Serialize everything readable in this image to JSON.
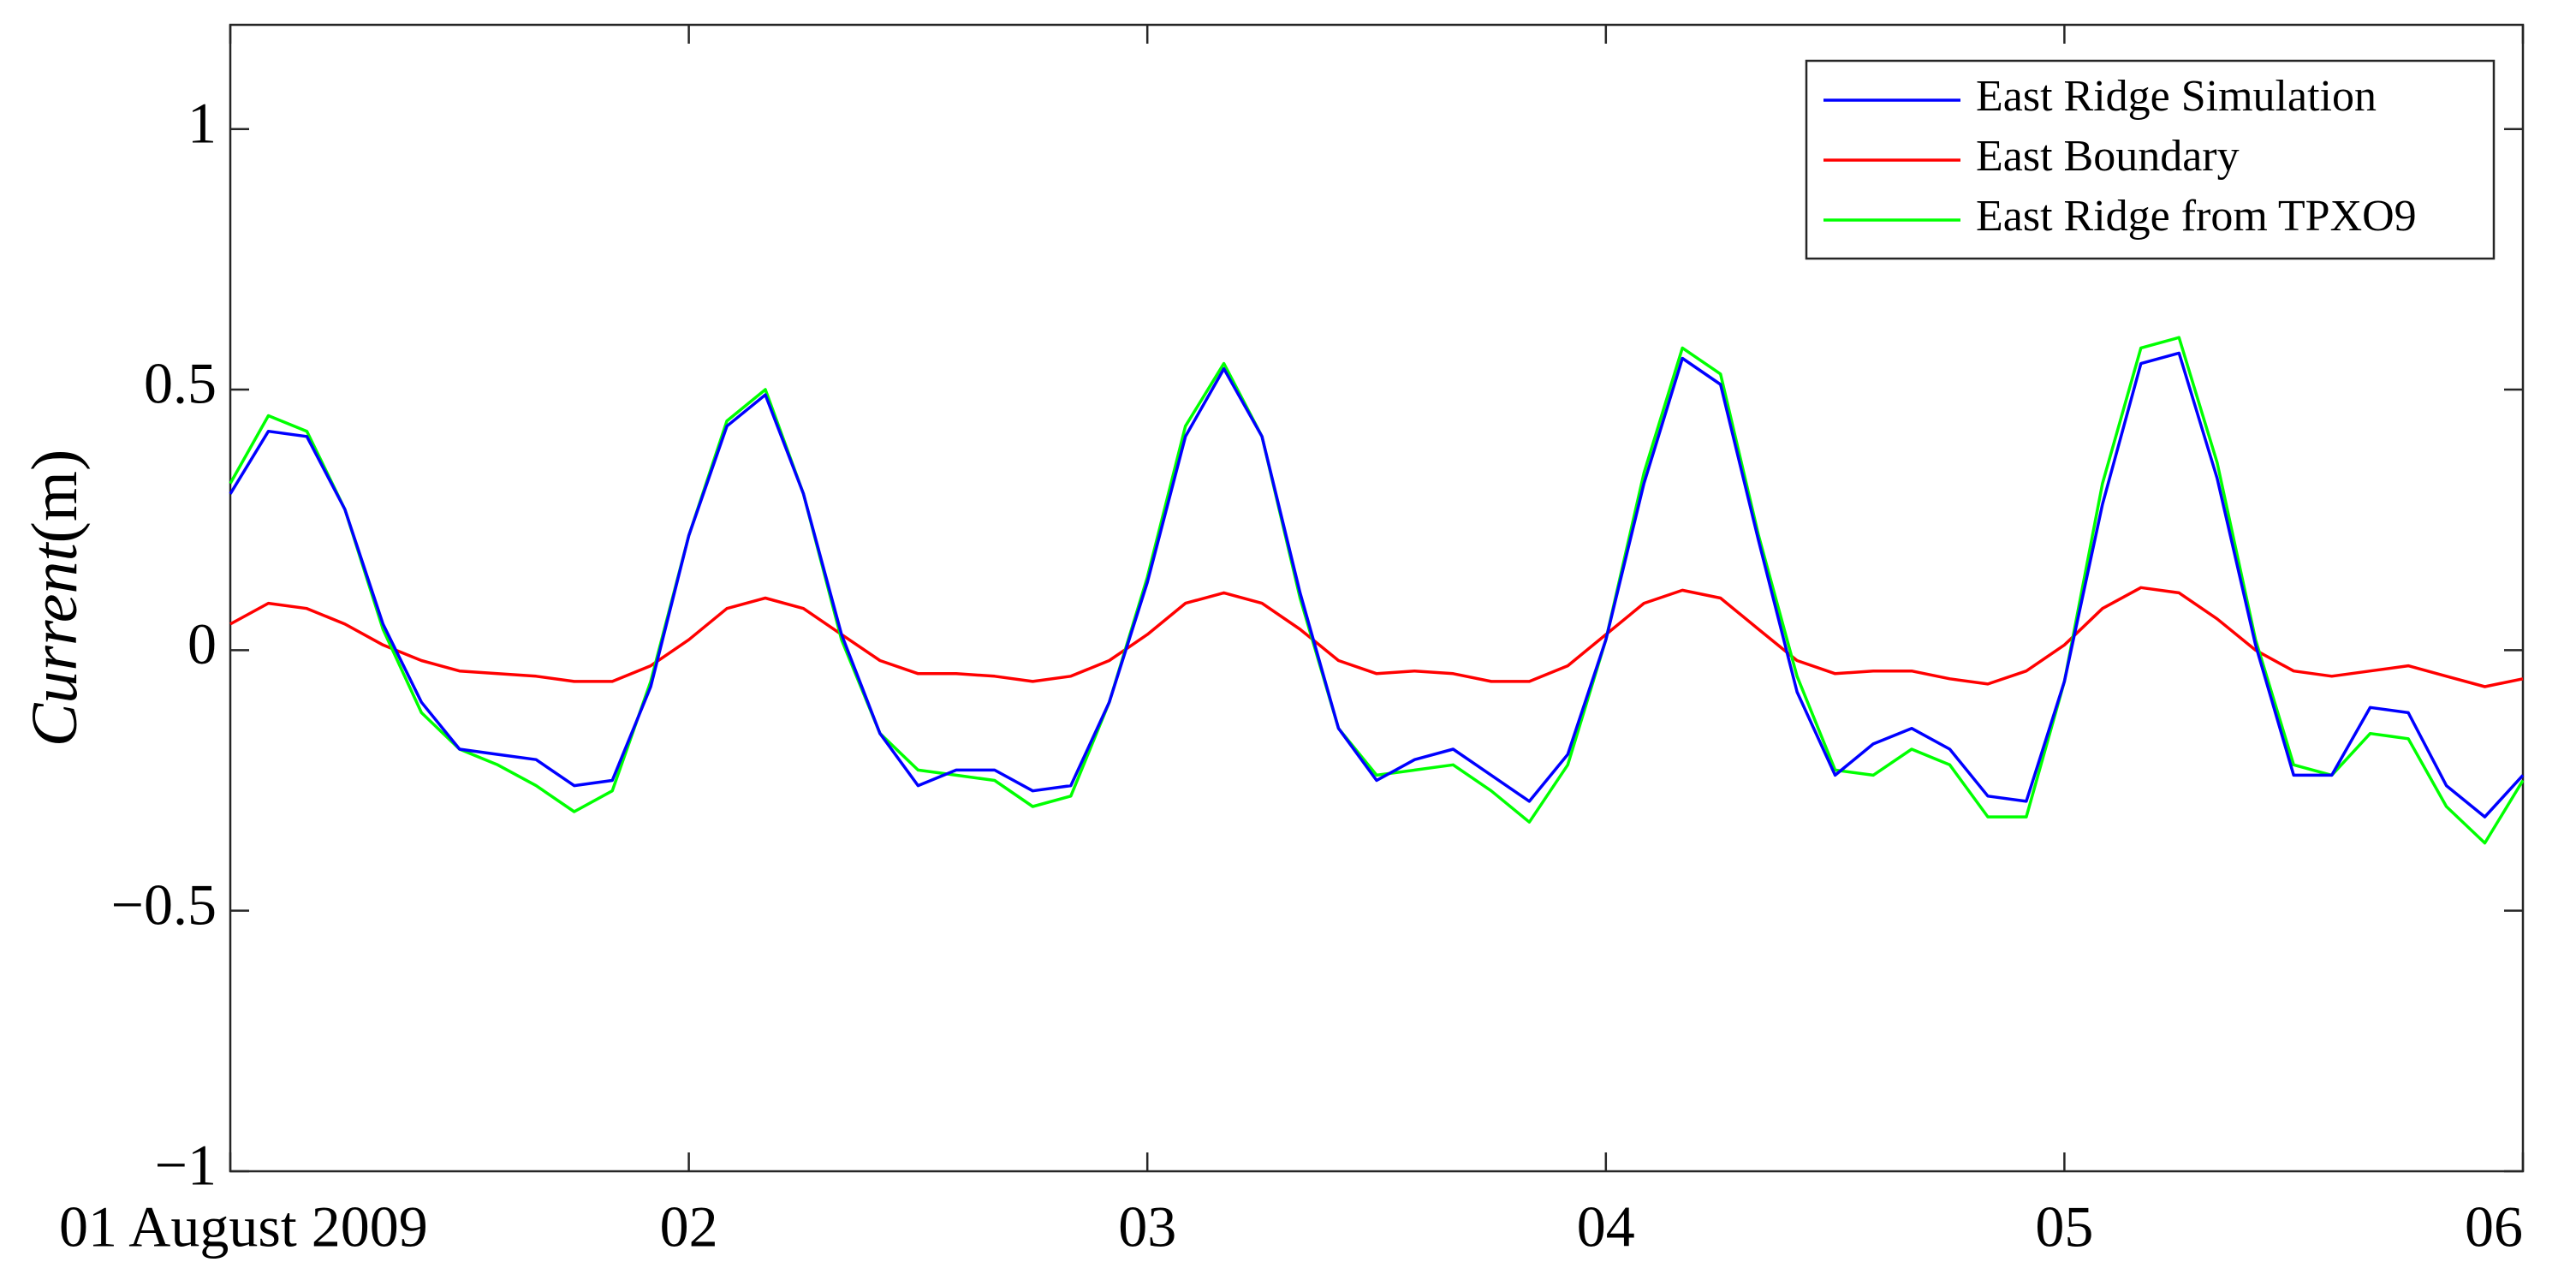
{
  "chart_data": {
    "type": "line",
    "y_label": "Current(m)",
    "x": [
      1,
      1.083,
      1.167,
      1.25,
      1.333,
      1.417,
      1.5,
      1.583,
      1.667,
      1.75,
      1.833,
      1.917,
      2,
      2.083,
      2.167,
      2.25,
      2.333,
      2.417,
      2.5,
      2.583,
      2.667,
      2.75,
      2.833,
      2.917,
      3,
      3.083,
      3.167,
      3.25,
      3.333,
      3.417,
      3.5,
      3.583,
      3.667,
      3.75,
      3.833,
      3.917,
      4,
      4.083,
      4.167,
      4.25,
      4.333,
      4.417,
      4.5,
      4.583,
      4.667,
      4.75,
      4.833,
      4.917,
      5,
      5.083,
      5.167,
      5.25,
      5.333,
      5.417,
      5.5,
      5.583,
      5.667,
      5.75,
      5.833,
      5.917,
      6
    ],
    "series": [
      {
        "name": "East Ridge Simulation",
        "color": "#0000ff",
        "values": [
          0.3,
          0.42,
          0.41,
          0.27,
          0.05,
          -0.1,
          -0.19,
          -0.2,
          -0.21,
          -0.26,
          -0.25,
          -0.07,
          0.22,
          0.43,
          0.49,
          0.3,
          0.03,
          -0.16,
          -0.26,
          -0.23,
          -0.23,
          -0.27,
          -0.26,
          -0.1,
          0.13,
          0.41,
          0.54,
          0.41,
          0.11,
          -0.15,
          -0.25,
          -0.21,
          -0.19,
          -0.24,
          -0.29,
          -0.2,
          0.02,
          0.32,
          0.56,
          0.51,
          0.21,
          -0.08,
          -0.24,
          -0.18,
          -0.15,
          -0.19,
          -0.28,
          -0.29,
          -0.06,
          0.28,
          0.55,
          0.57,
          0.33,
          0.01,
          -0.24,
          -0.24,
          -0.11,
          -0.12,
          -0.26,
          -0.32,
          -0.24
        ]
      },
      {
        "name": "East Boundary",
        "color": "#ff0000",
        "values": [
          0.05,
          0.09,
          0.08,
          0.05,
          0.01,
          -0.02,
          -0.04,
          -0.045,
          -0.05,
          -0.06,
          -0.06,
          -0.03,
          0.02,
          0.08,
          0.1,
          0.08,
          0.03,
          -0.02,
          -0.045,
          -0.045,
          -0.05,
          -0.06,
          -0.05,
          -0.02,
          0.03,
          0.09,
          0.11,
          0.09,
          0.04,
          -0.02,
          -0.045,
          -0.04,
          -0.045,
          -0.06,
          -0.06,
          -0.03,
          0.03,
          0.09,
          0.115,
          0.1,
          0.04,
          -0.02,
          -0.045,
          -0.04,
          -0.04,
          -0.055,
          -0.065,
          -0.04,
          0.01,
          0.08,
          0.12,
          0.11,
          0.06,
          0.0,
          -0.04,
          -0.05,
          -0.04,
          -0.03,
          -0.05,
          -0.07,
          -0.055
        ]
      },
      {
        "name": "East Ridge from TPXO9",
        "color": "#00ff00",
        "values": [
          0.32,
          0.45,
          0.42,
          0.27,
          0.04,
          -0.12,
          -0.19,
          -0.22,
          -0.26,
          -0.31,
          -0.27,
          -0.06,
          0.22,
          0.44,
          0.5,
          0.3,
          0.02,
          -0.16,
          -0.23,
          -0.24,
          -0.25,
          -0.3,
          -0.28,
          -0.1,
          0.14,
          0.43,
          0.55,
          0.41,
          0.1,
          -0.15,
          -0.24,
          -0.23,
          -0.22,
          -0.27,
          -0.33,
          -0.22,
          0.02,
          0.34,
          0.58,
          0.53,
          0.22,
          -0.05,
          -0.23,
          -0.24,
          -0.19,
          -0.22,
          -0.32,
          -0.32,
          -0.06,
          0.32,
          0.58,
          0.6,
          0.36,
          0.02,
          -0.22,
          -0.24,
          -0.16,
          -0.17,
          -0.3,
          -0.37,
          -0.25
        ]
      }
    ],
    "xlim": [
      1,
      6
    ],
    "xticks": [
      {
        "value": 1,
        "label": "01 August 2009"
      },
      {
        "value": 2,
        "label": "02"
      },
      {
        "value": 3,
        "label": "03"
      },
      {
        "value": 4,
        "label": "04"
      },
      {
        "value": 5,
        "label": "05"
      },
      {
        "value": 6,
        "label": "06"
      }
    ],
    "ylim": [
      -1,
      1.2
    ],
    "yticks": [
      {
        "value": -1,
        "label": "−1"
      },
      {
        "value": -0.5,
        "label": "−0.5"
      },
      0,
      0.5,
      1
    ],
    "grid": false,
    "legend": "upper right"
  }
}
